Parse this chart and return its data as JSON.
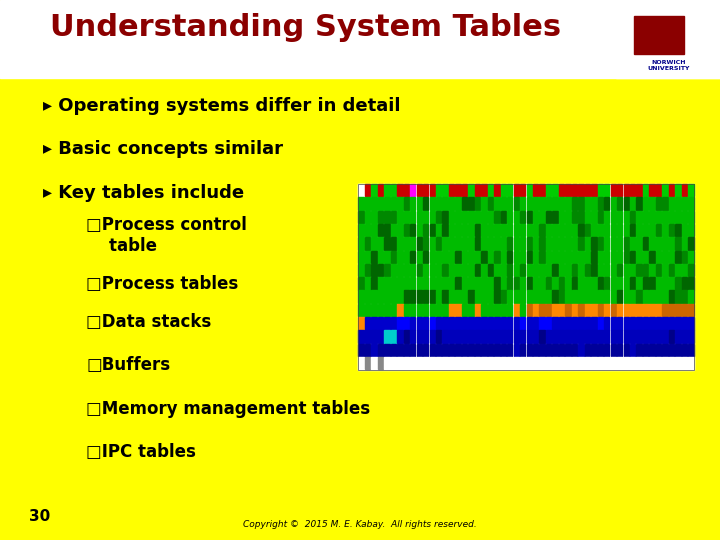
{
  "title": "Understanding System Tables",
  "background_color": "#FFFF00",
  "title_color": "#8B0000",
  "title_fontsize": 22,
  "text_color": "#000000",
  "bullet_fontsize": 13,
  "sub_bullet_fontsize": 12,
  "page_number": "30",
  "copyright_text": "Copyright ©  2015 M. E. Kabay.  All rights reserved.",
  "bullets": [
    "▸ Operating systems differ in detail",
    "▸ Basic concepts similar",
    "▸ Key tables include"
  ],
  "sub_bullets": [
    "□Process control\n    table",
    "□Process tables",
    "□Data stacks",
    "□Buffers",
    "□Memory management tables",
    "□IPC tables"
  ],
  "grid_rows": 14,
  "grid_cols": 52,
  "logo_box_color": "#FFFFFF",
  "logo_text_color": "#00008B",
  "logo_shield_color": "#8B0000"
}
